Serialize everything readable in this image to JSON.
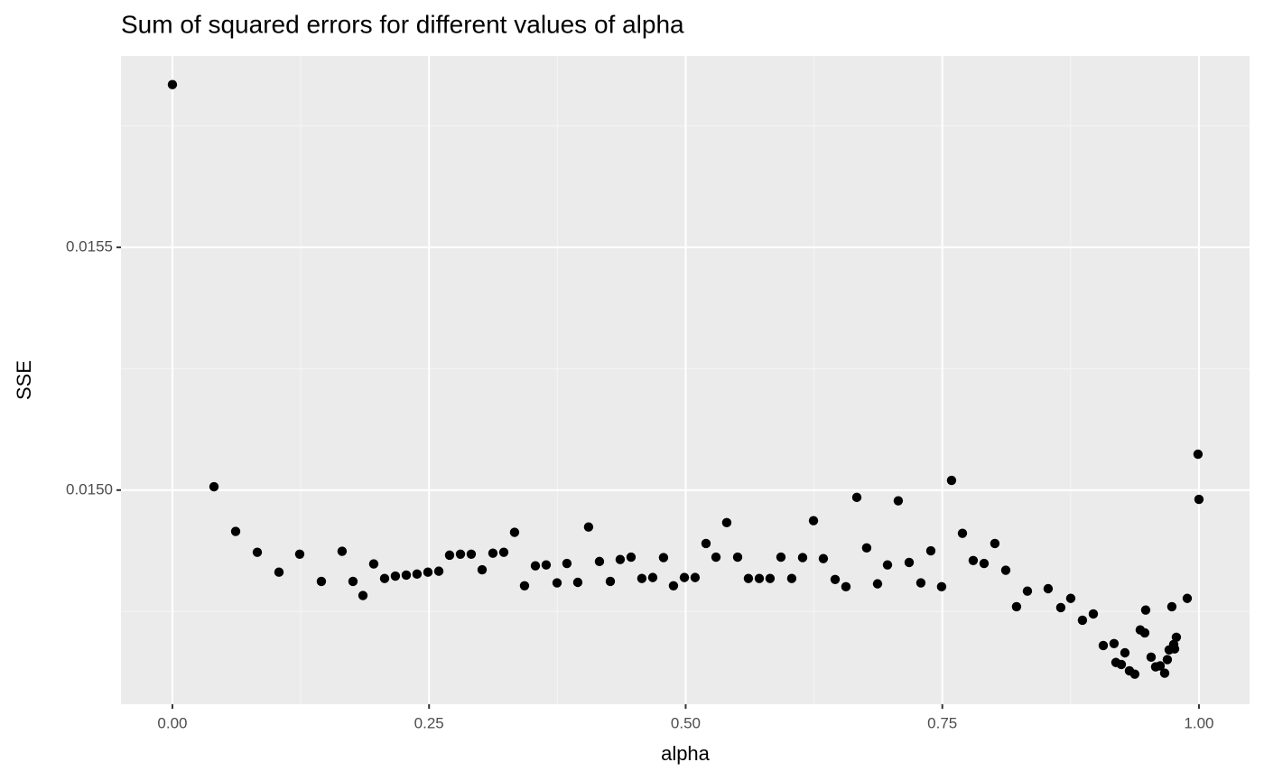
{
  "chart_data": {
    "type": "scatter",
    "title": "Sum of squared errors for different values of alpha",
    "x_label": "alpha",
    "y_label": "SSE",
    "color": "#000000",
    "grid": true,
    "xlim": [
      -0.0501,
      1.0493
    ],
    "ylim": [
      0.014559,
      0.015894
    ],
    "xticks": [
      {
        "value": 0,
        "label": "0.00"
      },
      {
        "value": 0.25,
        "label": "0.25"
      },
      {
        "value": 0.5,
        "label": "0.50"
      },
      {
        "value": 0.75,
        "label": "0.75"
      },
      {
        "value": 1,
        "label": "1.00"
      }
    ],
    "yticks": [
      {
        "value": 0.015,
        "label": "0.0150"
      },
      0.0155
    ],
    "x": [
      0,
      0.0405,
      0.0616,
      0.0827,
      0.1038,
      0.124,
      0.1451,
      0.1653,
      0.1759,
      0.1856,
      0.1961,
      0.2067,
      0.2172,
      0.2278,
      0.2383,
      0.2489,
      0.2595,
      0.27,
      0.2806,
      0.2911,
      0.3017,
      0.3122,
      0.3228,
      0.3333,
      0.343,
      0.3536,
      0.3641,
      0.3747,
      0.3843,
      0.3949,
      0.4054,
      0.416,
      0.4266,
      0.4362,
      0.4468,
      0.4573,
      0.4679,
      0.4784,
      0.4881,
      0.4987,
      0.5092,
      0.5198,
      0.5295,
      0.54,
      0.5506,
      0.5611,
      0.5717,
      0.5822,
      0.5928,
      0.6033,
      0.6139,
      0.6245,
      0.6341,
      0.6456,
      0.6561,
      0.6667,
      0.6763,
      0.6869,
      0.6966,
      0.7071,
      0.7177,
      0.7291,
      0.7388,
      0.7493,
      0.759,
      0.7696,
      0.7801,
      0.7907,
      0.8012,
      0.8118,
      0.8223,
      0.8329,
      0.8531,
      0.8654,
      0.8751,
      0.8865,
      0.8971,
      0.9068,
      0.9173,
      0.9191,
      0.9244,
      0.9279,
      0.9323,
      0.9375,
      0.9428,
      0.9472,
      0.9481,
      0.9534,
      0.9578,
      0.9622,
      0.9666,
      0.9692,
      0.971,
      0.9736,
      0.9754,
      0.9763,
      0.978,
      0.9886,
      0.9991,
      1.0
    ],
    "values": [
      0.015835,
      0.015007,
      0.014915,
      0.014872,
      0.014831,
      0.014868,
      0.014812,
      0.014874,
      0.014812,
      0.014783,
      0.014848,
      0.014818,
      0.014823,
      0.014825,
      0.014827,
      0.014831,
      0.014833,
      0.014866,
      0.014868,
      0.014868,
      0.014836,
      0.01487,
      0.014872,
      0.014913,
      0.014803,
      0.014844,
      0.014846,
      0.014809,
      0.014849,
      0.01481,
      0.014924,
      0.014853,
      0.014812,
      0.014857,
      0.014862,
      0.014818,
      0.01482,
      0.014861,
      0.014803,
      0.01482,
      0.01482,
      0.01489,
      0.014862,
      0.014933,
      0.014862,
      0.014818,
      0.014818,
      0.014818,
      0.014862,
      0.014818,
      0.014861,
      0.014937,
      0.014859,
      0.014816,
      0.014801,
      0.014985,
      0.014881,
      0.014807,
      0.014846,
      0.014978,
      0.014851,
      0.014809,
      0.014875,
      0.014801,
      0.01502,
      0.014911,
      0.014855,
      0.014849,
      0.01489,
      0.014835,
      0.01476,
      0.014792,
      0.014797,
      0.014758,
      0.014777,
      0.014732,
      0.014745,
      0.01468,
      0.014684,
      0.014645,
      0.014641,
      0.014665,
      0.014628,
      0.014621,
      0.014712,
      0.014706,
      0.014753,
      0.014656,
      0.014636,
      0.014638,
      0.014623,
      0.014651,
      0.014671,
      0.01476,
      0.014682,
      0.014673,
      0.014697,
      0.014777,
      0.015074,
      0.014981
    ]
  }
}
